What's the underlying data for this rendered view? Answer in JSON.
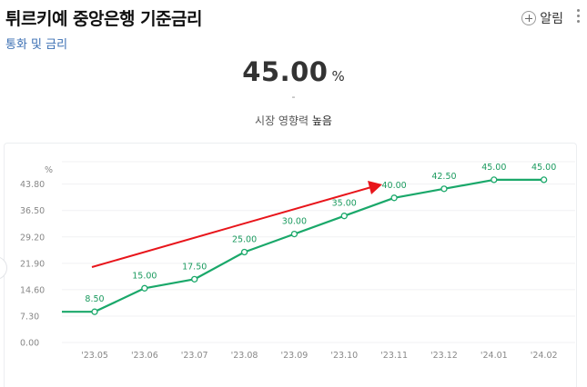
{
  "header": {
    "title": "튀르키예 중앙은행 기준금리",
    "subtitle": "통화 및 금리",
    "alert_label": "알림",
    "plus_icon": "plus-circle-icon",
    "more_icon": "more-vertical-icon"
  },
  "summary": {
    "value": "45.00",
    "unit": "%",
    "change": "-",
    "impact_label": "시장 영향력",
    "impact_value": "높음"
  },
  "chart_data": {
    "type": "line",
    "y_unit": "%",
    "categories": [
      "'23.05",
      "'23.06",
      "'23.07",
      "'23.08",
      "'23.09",
      "'23.10",
      "'23.11",
      "'23.12",
      "'24.01",
      "'24.02"
    ],
    "values": [
      8.5,
      15.0,
      17.5,
      25.0,
      30.0,
      35.0,
      40.0,
      42.5,
      45.0,
      45.0
    ],
    "data_labels": [
      "8.50",
      "15.00",
      "17.50",
      "25.00",
      "30.00",
      "35.00",
      "40.00",
      "42.50",
      "45.00",
      "45.00"
    ],
    "y_ticks": [
      0.0,
      7.3,
      14.6,
      21.9,
      29.2,
      36.5,
      43.8
    ],
    "y_tick_labels": [
      "0.00",
      "7.30",
      "14.60",
      "21.90",
      "29.20",
      "36.50",
      "43.80"
    ],
    "ylim": [
      0,
      50
    ],
    "line_color": "#1aa86a",
    "arrow_color": "#e8151b",
    "annotation": "trend-arrow-up",
    "grid": true
  }
}
